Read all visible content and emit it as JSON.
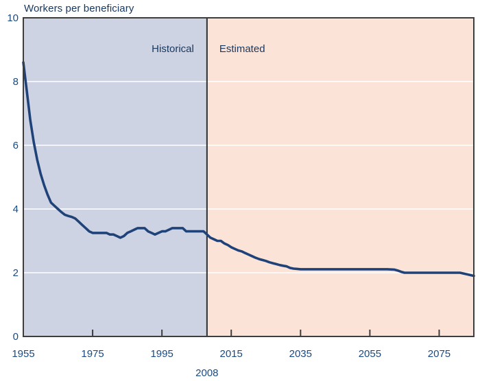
{
  "title": "Workers per beneficiary",
  "region_labels": {
    "historical": "Historical",
    "estimated": "Estimated"
  },
  "divider_label": "2008",
  "colors": {
    "historical_bg": "#cdd3e2",
    "estimated_bg": "#fbe3d8",
    "line": "#1f4278",
    "title_text": "#17375e",
    "axis_text": "#1a4a80",
    "border": "#3d3d3d",
    "divider": "#2e2e2e",
    "gridline": "#ffffff"
  },
  "chart_data": {
    "type": "line",
    "title": "Workers per beneficiary",
    "xlabel": "",
    "ylabel": "Workers per beneficiary",
    "xlim": [
      1955,
      2085
    ],
    "ylim": [
      0,
      10
    ],
    "x_ticks": [
      1955,
      1975,
      1995,
      2015,
      2035,
      2055,
      2075
    ],
    "y_ticks": [
      0,
      2,
      4,
      6,
      8,
      10
    ],
    "gridline_values": [
      2,
      4,
      6,
      8
    ],
    "grid": true,
    "legend_position": "none",
    "divider_year": 2008,
    "regions": [
      {
        "label": "Historical",
        "from": 1955,
        "to": 2008
      },
      {
        "label": "Estimated",
        "from": 2008,
        "to": 2085
      }
    ],
    "series": [
      {
        "name": "Workers per beneficiary",
        "points": [
          [
            1955,
            8.6
          ],
          [
            1956,
            7.7
          ],
          [
            1957,
            6.8
          ],
          [
            1958,
            6.1
          ],
          [
            1959,
            5.55
          ],
          [
            1960,
            5.1
          ],
          [
            1961,
            4.75
          ],
          [
            1962,
            4.45
          ],
          [
            1963,
            4.2
          ],
          [
            1964,
            4.1
          ],
          [
            1965,
            4.0
          ],
          [
            1966,
            3.9
          ],
          [
            1967,
            3.82
          ],
          [
            1968,
            3.78
          ],
          [
            1969,
            3.75
          ],
          [
            1970,
            3.7
          ],
          [
            1971,
            3.6
          ],
          [
            1972,
            3.5
          ],
          [
            1973,
            3.4
          ],
          [
            1974,
            3.3
          ],
          [
            1975,
            3.25
          ],
          [
            1976,
            3.25
          ],
          [
            1977,
            3.25
          ],
          [
            1978,
            3.25
          ],
          [
            1979,
            3.25
          ],
          [
            1980,
            3.2
          ],
          [
            1981,
            3.2
          ],
          [
            1982,
            3.15
          ],
          [
            1983,
            3.1
          ],
          [
            1984,
            3.15
          ],
          [
            1985,
            3.25
          ],
          [
            1986,
            3.3
          ],
          [
            1987,
            3.35
          ],
          [
            1988,
            3.4
          ],
          [
            1989,
            3.4
          ],
          [
            1990,
            3.4
          ],
          [
            1991,
            3.3
          ],
          [
            1992,
            3.25
          ],
          [
            1993,
            3.2
          ],
          [
            1994,
            3.25
          ],
          [
            1995,
            3.3
          ],
          [
            1996,
            3.3
          ],
          [
            1997,
            3.35
          ],
          [
            1998,
            3.4
          ],
          [
            1999,
            3.4
          ],
          [
            2000,
            3.4
          ],
          [
            2001,
            3.4
          ],
          [
            2002,
            3.3
          ],
          [
            2003,
            3.3
          ],
          [
            2004,
            3.3
          ],
          [
            2005,
            3.3
          ],
          [
            2006,
            3.3
          ],
          [
            2007,
            3.3
          ],
          [
            2008,
            3.2
          ],
          [
            2009,
            3.1
          ],
          [
            2010,
            3.05
          ],
          [
            2011,
            3.0
          ],
          [
            2012,
            3.0
          ],
          [
            2013,
            2.92
          ],
          [
            2014,
            2.87
          ],
          [
            2015,
            2.8
          ],
          [
            2016,
            2.75
          ],
          [
            2017,
            2.7
          ],
          [
            2018,
            2.67
          ],
          [
            2019,
            2.62
          ],
          [
            2020,
            2.57
          ],
          [
            2021,
            2.52
          ],
          [
            2022,
            2.47
          ],
          [
            2023,
            2.43
          ],
          [
            2024,
            2.4
          ],
          [
            2025,
            2.37
          ],
          [
            2026,
            2.33
          ],
          [
            2027,
            2.3
          ],
          [
            2028,
            2.27
          ],
          [
            2029,
            2.24
          ],
          [
            2030,
            2.22
          ],
          [
            2031,
            2.2
          ],
          [
            2032,
            2.15
          ],
          [
            2033,
            2.13
          ],
          [
            2034,
            2.12
          ],
          [
            2035,
            2.11
          ],
          [
            2040,
            2.11
          ],
          [
            2045,
            2.11
          ],
          [
            2050,
            2.11
          ],
          [
            2055,
            2.11
          ],
          [
            2060,
            2.11
          ],
          [
            2062,
            2.1
          ],
          [
            2063,
            2.07
          ],
          [
            2064,
            2.03
          ],
          [
            2065,
            2.0
          ],
          [
            2070,
            2.0
          ],
          [
            2075,
            2.0
          ],
          [
            2080,
            2.0
          ],
          [
            2081,
            2.0
          ],
          [
            2083,
            1.95
          ],
          [
            2085,
            1.9
          ]
        ]
      }
    ]
  }
}
